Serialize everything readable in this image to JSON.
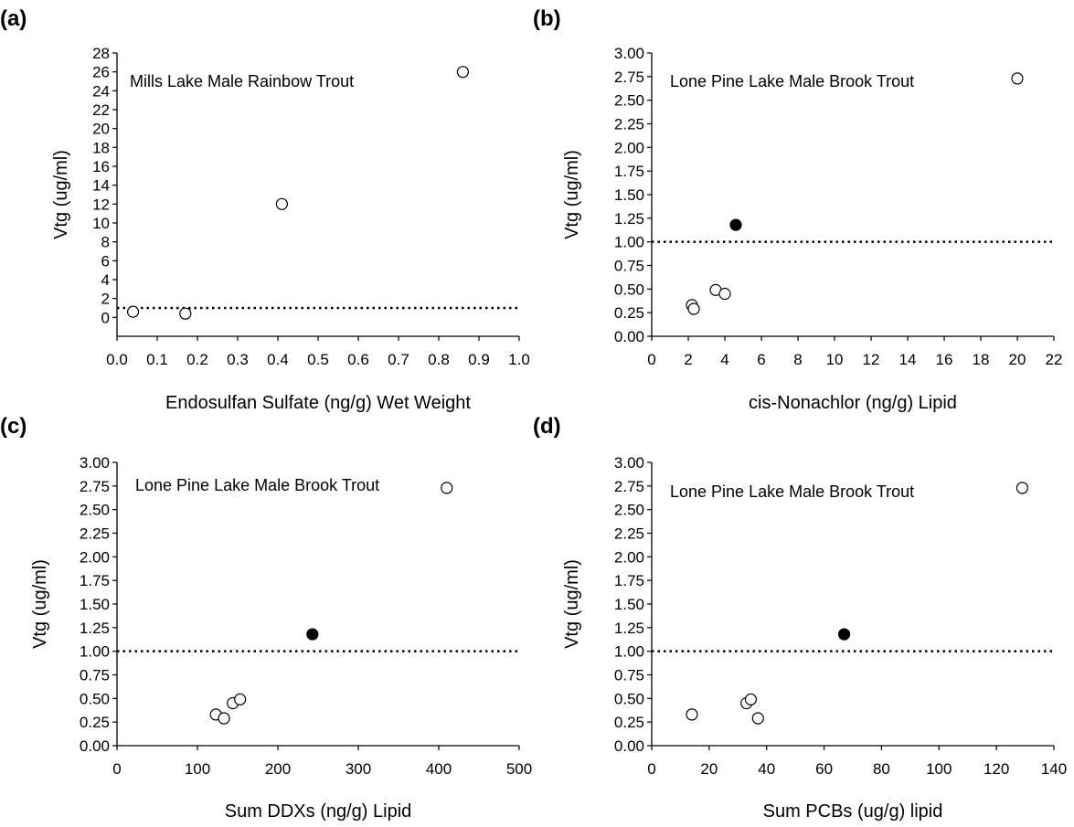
{
  "chart_data": [
    {
      "panel_label": "(a)",
      "type": "scatter",
      "annotation": "Mills Lake Male Rainbow Trout",
      "xlabel": "Endosulfan Sulfate (ng/g) Wet Weight",
      "ylabel": "Vtg (ug/ml)",
      "xlim": [
        0,
        1.0
      ],
      "ylim": [
        -2,
        28
      ],
      "xticks": [
        "0.0",
        "0.1",
        "0.2",
        "0.3",
        "0.4",
        "0.5",
        "0.6",
        "0.7",
        "0.8",
        "0.9",
        "1.0"
      ],
      "yticks": [
        "0",
        "2",
        "4",
        "6",
        "8",
        "10",
        "12",
        "14",
        "16",
        "18",
        "20",
        "22",
        "24",
        "26",
        "28"
      ],
      "threshold": 1.0,
      "points": [
        {
          "x": 0.04,
          "y": 0.6,
          "filled": false
        },
        {
          "x": 0.17,
          "y": 0.4,
          "filled": false
        },
        {
          "x": 0.41,
          "y": 12.0,
          "filled": false
        },
        {
          "x": 0.86,
          "y": 26.0,
          "filled": false
        }
      ]
    },
    {
      "panel_label": "(b)",
      "type": "scatter",
      "annotation": "Lone Pine Lake Male Brook Trout",
      "xlabel": "cis-Nonachlor (ng/g) Lipid",
      "ylabel": "Vtg (ug/ml)",
      "xlim": [
        0,
        22
      ],
      "ylim": [
        0,
        3.0
      ],
      "xticks": [
        "0",
        "2",
        "4",
        "6",
        "8",
        "10",
        "12",
        "14",
        "16",
        "18",
        "20",
        "22"
      ],
      "yticks": [
        "0.00",
        "0.25",
        "0.50",
        "0.75",
        "1.00",
        "1.25",
        "1.50",
        "1.75",
        "2.00",
        "2.25",
        "2.50",
        "2.75",
        "3.00"
      ],
      "threshold": 1.0,
      "points": [
        {
          "x": 2.2,
          "y": 0.33,
          "filled": false
        },
        {
          "x": 2.3,
          "y": 0.29,
          "filled": false
        },
        {
          "x": 3.5,
          "y": 0.49,
          "filled": false
        },
        {
          "x": 4.0,
          "y": 0.45,
          "filled": false
        },
        {
          "x": 4.6,
          "y": 1.18,
          "filled": true
        },
        {
          "x": 20.0,
          "y": 2.73,
          "filled": false
        }
      ]
    },
    {
      "panel_label": "(c)",
      "type": "scatter",
      "annotation": "Lone Pine Lake Male Brook Trout",
      "xlabel": "Sum DDXs (ng/g) Lipid",
      "ylabel": "Vtg (ug/ml)",
      "xlim": [
        0,
        500
      ],
      "ylim": [
        0,
        3.0
      ],
      "xticks": [
        "0",
        "100",
        "200",
        "300",
        "400",
        "500"
      ],
      "yticks": [
        "0.00",
        "0.25",
        "0.50",
        "0.75",
        "1.00",
        "1.25",
        "1.50",
        "1.75",
        "2.00",
        "2.25",
        "2.50",
        "2.75",
        "3.00"
      ],
      "threshold": 1.0,
      "points": [
        {
          "x": 123,
          "y": 0.33,
          "filled": false
        },
        {
          "x": 133,
          "y": 0.29,
          "filled": false
        },
        {
          "x": 144,
          "y": 0.45,
          "filled": false
        },
        {
          "x": 153,
          "y": 0.49,
          "filled": false
        },
        {
          "x": 243,
          "y": 1.18,
          "filled": true
        },
        {
          "x": 410,
          "y": 2.73,
          "filled": false
        }
      ]
    },
    {
      "panel_label": "(d)",
      "type": "scatter",
      "annotation": "Lone Pine Lake Male Brook Trout",
      "xlabel": "Sum PCBs (ug/g) lipid",
      "ylabel": "Vtg (ug/ml)",
      "xlim": [
        0,
        140
      ],
      "ylim": [
        0,
        3.0
      ],
      "xticks": [
        "0",
        "20",
        "40",
        "60",
        "80",
        "100",
        "120",
        "140"
      ],
      "yticks": [
        "0.00",
        "0.25",
        "0.50",
        "0.75",
        "1.00",
        "1.25",
        "1.50",
        "1.75",
        "2.00",
        "2.25",
        "2.50",
        "2.75",
        "3.00"
      ],
      "threshold": 1.0,
      "points": [
        {
          "x": 14,
          "y": 0.33,
          "filled": false
        },
        {
          "x": 33,
          "y": 0.45,
          "filled": false
        },
        {
          "x": 34.5,
          "y": 0.49,
          "filled": false
        },
        {
          "x": 37,
          "y": 0.29,
          "filled": false
        },
        {
          "x": 67,
          "y": 1.18,
          "filled": true
        },
        {
          "x": 129,
          "y": 2.73,
          "filled": false
        }
      ]
    }
  ]
}
